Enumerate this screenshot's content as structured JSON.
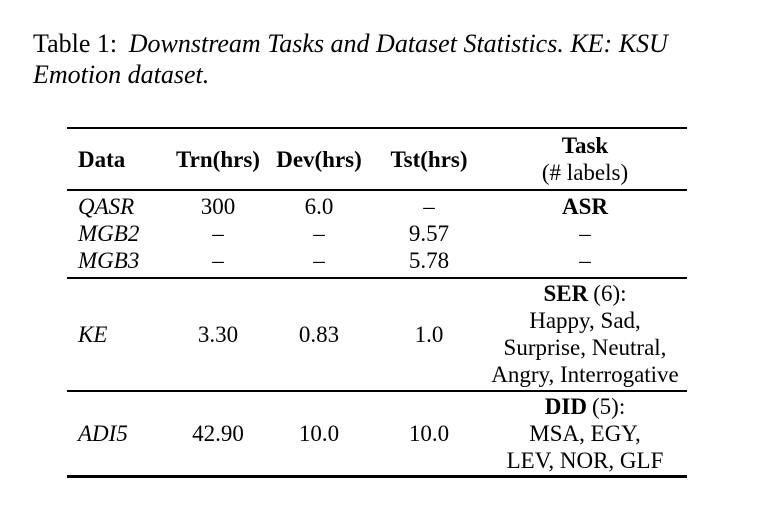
{
  "colors": {
    "text": "#000000",
    "background": "#ffffff",
    "rule": "#000000"
  },
  "caption": {
    "label": "Table 1:",
    "text": "Downstream Tasks and Dataset Statistics. KE: KSU Emotion dataset."
  },
  "table": {
    "headers": {
      "data": "Data",
      "trn": "Trn(hrs)",
      "dev": "Dev(hrs)",
      "tst": "Tst(hrs)",
      "task_title": "Task",
      "task_sub": "(# labels)"
    },
    "rows": [
      {
        "name": "QASR",
        "trn": "300",
        "dev": "6.0",
        "tst": "–",
        "task": "ASR"
      },
      {
        "name": "MGB2",
        "trn": "–",
        "dev": "–",
        "tst": "9.57",
        "task": "–"
      },
      {
        "name": "MGB3",
        "trn": "–",
        "dev": "–",
        "tst": "5.78",
        "task": "–"
      },
      {
        "name": "KE",
        "trn": "3.30",
        "dev": "0.83",
        "tst": "1.0",
        "task_name": "SER",
        "task_count": "(6):",
        "task_labels": [
          "Happy, Sad,",
          "Surprise, Neutral,",
          "Angry, Interrogative"
        ]
      },
      {
        "name": "ADI5",
        "trn": "42.90",
        "dev": "10.0",
        "tst": "10.0",
        "task_name": "DID",
        "task_count": "(5):",
        "task_labels": [
          "MSA, EGY,",
          "LEV, NOR, GLF"
        ]
      }
    ]
  }
}
